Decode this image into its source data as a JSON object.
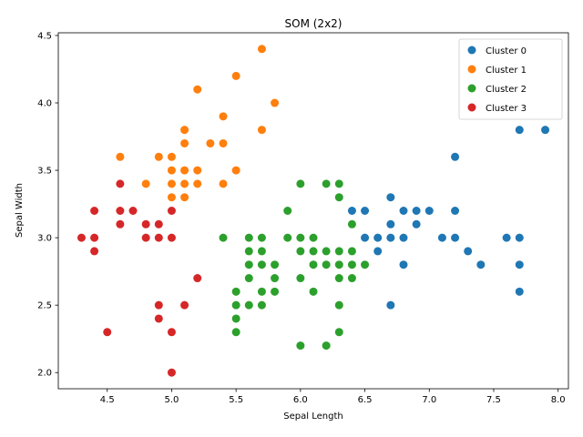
{
  "chart_data": {
    "type": "scatter",
    "title": "SOM (2x2)",
    "xlabel": "Sepal Length",
    "ylabel": "Sepal Width",
    "xlim": [
      4.12,
      8.08
    ],
    "ylim": [
      1.88,
      4.52
    ],
    "xticks": [
      4.5,
      5.0,
      5.5,
      6.0,
      6.5,
      7.0,
      7.5,
      8.0
    ],
    "xtick_labels": [
      "4.5",
      "5.0",
      "5.5",
      "6.0",
      "6.5",
      "7.0",
      "7.5",
      "8.0"
    ],
    "yticks": [
      2.0,
      2.5,
      3.0,
      3.5,
      4.0,
      4.5
    ],
    "ytick_labels": [
      "2.0",
      "2.5",
      "3.0",
      "3.5",
      "4.0",
      "4.5"
    ],
    "grid": false,
    "legend_position": "top-right",
    "series": [
      {
        "name": "Cluster 0",
        "color": "#1f77b4",
        "points": [
          [
            7.7,
            3.8
          ],
          [
            7.9,
            3.8
          ],
          [
            7.2,
            3.6
          ],
          [
            6.4,
            3.2
          ],
          [
            6.5,
            3.2
          ],
          [
            6.7,
            3.3
          ],
          [
            6.8,
            3.2
          ],
          [
            6.9,
            3.2
          ],
          [
            7.0,
            3.2
          ],
          [
            7.2,
            3.2
          ],
          [
            6.7,
            3.1
          ],
          [
            6.9,
            3.1
          ],
          [
            6.5,
            3.0
          ],
          [
            6.6,
            3.0
          ],
          [
            6.7,
            3.0
          ],
          [
            6.8,
            3.0
          ],
          [
            7.1,
            3.0
          ],
          [
            7.2,
            3.0
          ],
          [
            7.6,
            3.0
          ],
          [
            7.7,
            3.0
          ],
          [
            6.6,
            2.9
          ],
          [
            7.3,
            2.9
          ],
          [
            6.8,
            2.8
          ],
          [
            7.4,
            2.8
          ],
          [
            7.7,
            2.8
          ],
          [
            7.7,
            2.6
          ],
          [
            6.7,
            2.5
          ]
        ]
      },
      {
        "name": "Cluster 1",
        "color": "#ff7f0e",
        "points": [
          [
            5.7,
            4.4
          ],
          [
            5.5,
            4.2
          ],
          [
            5.2,
            4.1
          ],
          [
            5.8,
            4.0
          ],
          [
            5.4,
            3.9
          ],
          [
            5.1,
            3.8
          ],
          [
            5.7,
            3.8
          ],
          [
            5.1,
            3.7
          ],
          [
            5.3,
            3.7
          ],
          [
            5.4,
            3.7
          ],
          [
            4.6,
            3.6
          ],
          [
            4.9,
            3.6
          ],
          [
            5.0,
            3.6
          ],
          [
            5.0,
            3.5
          ],
          [
            5.1,
            3.5
          ],
          [
            5.2,
            3.5
          ],
          [
            5.5,
            3.5
          ],
          [
            4.8,
            3.4
          ],
          [
            5.0,
            3.4
          ],
          [
            5.1,
            3.4
          ],
          [
            5.2,
            3.4
          ],
          [
            5.4,
            3.4
          ],
          [
            5.0,
            3.3
          ],
          [
            5.1,
            3.3
          ]
        ]
      },
      {
        "name": "Cluster 2",
        "color": "#2ca02c",
        "points": [
          [
            6.0,
            3.4
          ],
          [
            6.2,
            3.4
          ],
          [
            6.3,
            3.4
          ],
          [
            6.3,
            3.3
          ],
          [
            5.9,
            3.2
          ],
          [
            6.4,
            3.1
          ],
          [
            5.4,
            3.0
          ],
          [
            5.6,
            3.0
          ],
          [
            5.7,
            3.0
          ],
          [
            5.9,
            3.0
          ],
          [
            6.0,
            3.0
          ],
          [
            6.1,
            3.0
          ],
          [
            5.6,
            2.9
          ],
          [
            5.7,
            2.9
          ],
          [
            6.0,
            2.9
          ],
          [
            6.1,
            2.9
          ],
          [
            6.2,
            2.9
          ],
          [
            6.3,
            2.9
          ],
          [
            6.4,
            2.9
          ],
          [
            5.6,
            2.8
          ],
          [
            5.7,
            2.8
          ],
          [
            5.8,
            2.8
          ],
          [
            6.1,
            2.8
          ],
          [
            6.2,
            2.8
          ],
          [
            6.3,
            2.8
          ],
          [
            6.4,
            2.8
          ],
          [
            6.5,
            2.8
          ],
          [
            5.6,
            2.7
          ],
          [
            5.8,
            2.7
          ],
          [
            6.0,
            2.7
          ],
          [
            6.3,
            2.7
          ],
          [
            6.4,
            2.7
          ],
          [
            5.5,
            2.6
          ],
          [
            5.7,
            2.6
          ],
          [
            5.8,
            2.6
          ],
          [
            6.1,
            2.6
          ],
          [
            5.5,
            2.5
          ],
          [
            5.6,
            2.5
          ],
          [
            5.7,
            2.5
          ],
          [
            6.3,
            2.5
          ],
          [
            5.5,
            2.4
          ],
          [
            5.5,
            2.3
          ],
          [
            6.3,
            2.3
          ],
          [
            6.0,
            2.2
          ],
          [
            6.2,
            2.2
          ]
        ]
      },
      {
        "name": "Cluster 3",
        "color": "#d62728",
        "points": [
          [
            4.6,
            3.4
          ],
          [
            4.4,
            3.2
          ],
          [
            4.6,
            3.2
          ],
          [
            4.7,
            3.2
          ],
          [
            5.0,
            3.2
          ],
          [
            4.6,
            3.1
          ],
          [
            4.8,
            3.1
          ],
          [
            4.9,
            3.1
          ],
          [
            4.3,
            3.0
          ],
          [
            4.4,
            3.0
          ],
          [
            4.8,
            3.0
          ],
          [
            4.9,
            3.0
          ],
          [
            5.0,
            3.0
          ],
          [
            4.4,
            2.9
          ],
          [
            5.2,
            2.7
          ],
          [
            4.9,
            2.5
          ],
          [
            5.1,
            2.5
          ],
          [
            4.9,
            2.4
          ],
          [
            4.5,
            2.3
          ],
          [
            5.0,
            2.3
          ],
          [
            5.0,
            2.0
          ]
        ]
      }
    ]
  }
}
